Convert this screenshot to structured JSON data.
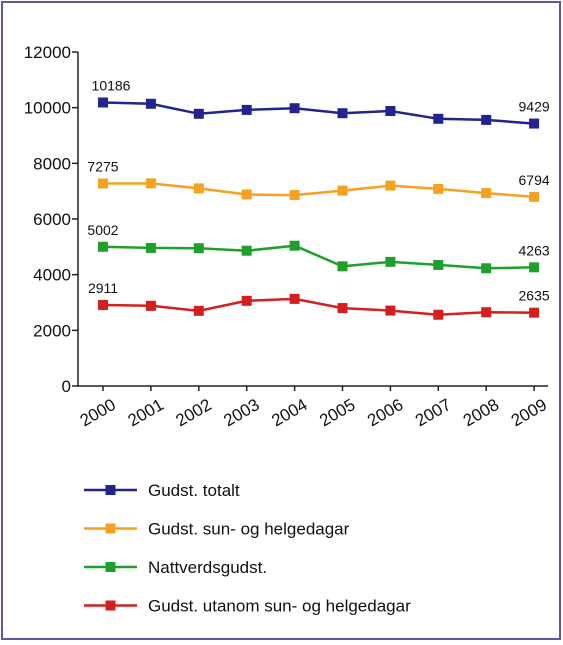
{
  "chart_data": {
    "type": "line",
    "title": "",
    "xlabel": "",
    "ylabel": "",
    "ylim": [
      0,
      12000
    ],
    "yticks": [
      0,
      2000,
      4000,
      6000,
      8000,
      10000,
      12000
    ],
    "categories": [
      "2000",
      "2001",
      "2002",
      "2003",
      "2004",
      "2005",
      "2006",
      "2007",
      "2008",
      "2009"
    ],
    "grid": false,
    "legend_position": "bottom",
    "series": [
      {
        "name": "Gudst. totalt",
        "color": "#23238e",
        "values": [
          10186,
          10140,
          9780,
          9920,
          9980,
          9800,
          9880,
          9600,
          9560,
          9429
        ],
        "labels": [
          "10186",
          "9429"
        ]
      },
      {
        "name": "Gudst. sun- og helgedagar",
        "color": "#f4a21f",
        "values": [
          7275,
          7280,
          7100,
          6880,
          6860,
          7020,
          7200,
          7080,
          6930,
          6794
        ],
        "labels": [
          "7275",
          "6794"
        ]
      },
      {
        "name": "Nattverdsgudst.",
        "color": "#1fa02a",
        "values": [
          5002,
          4960,
          4950,
          4860,
          5040,
          4300,
          4460,
          4350,
          4230,
          4263
        ],
        "labels": [
          "5002",
          "4263"
        ]
      },
      {
        "name": "Gudst. utanom sun- og helgedagar",
        "color": "#d41f1f",
        "values": [
          2911,
          2880,
          2700,
          3060,
          3130,
          2800,
          2710,
          2560,
          2650,
          2635
        ],
        "labels": [
          "2911",
          "2635"
        ]
      }
    ]
  }
}
